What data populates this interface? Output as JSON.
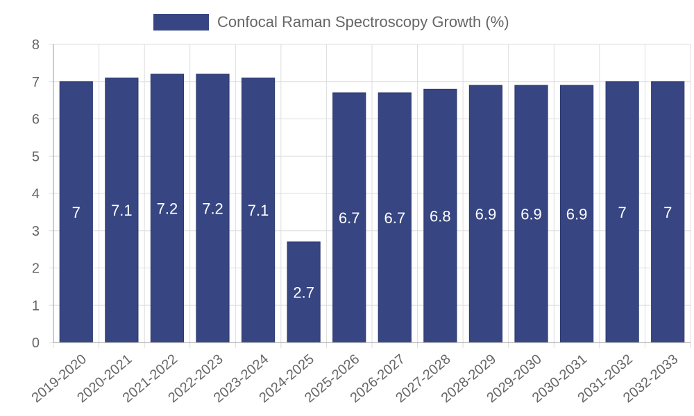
{
  "chart_data": {
    "type": "bar",
    "title": "",
    "xlabel": "",
    "ylabel": "",
    "categories": [
      "2019-2020",
      "2020-2021",
      "2021-2022",
      "2022-2023",
      "2023-2024",
      "2024-2025",
      "2025-2026",
      "2026-2027",
      "2027-2028",
      "2028-2029",
      "2029-2030",
      "2030-2031",
      "2031-2032",
      "2032-2033"
    ],
    "series": [
      {
        "name": "Confocal Raman Spectroscopy Growth (%)",
        "values": [
          7,
          7.1,
          7.2,
          7.2,
          7.1,
          2.7,
          6.7,
          6.7,
          6.8,
          6.9,
          6.9,
          6.9,
          7,
          7
        ],
        "color": "#374682"
      }
    ],
    "ylim": [
      0,
      8
    ],
    "yticks": [
      0,
      1,
      2,
      3,
      4,
      5,
      6,
      7,
      8
    ],
    "grid": true,
    "legend_position": "top-center",
    "data_labels": true
  },
  "colors": {
    "grid": "#dddddd",
    "axis": "#999999",
    "text": "#666666",
    "label": "#ffffff"
  }
}
